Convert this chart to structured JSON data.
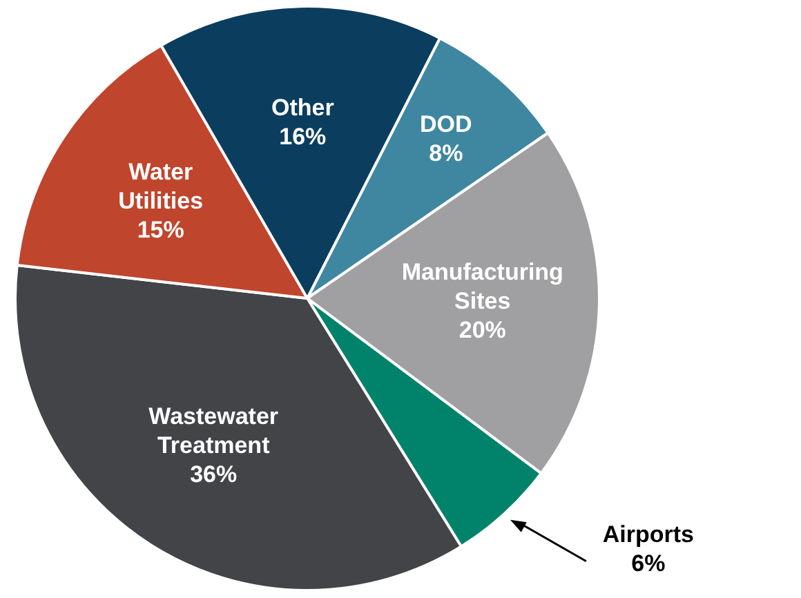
{
  "chart_data": {
    "type": "pie",
    "categories": [
      "DOD",
      "Manufacturing Sites",
      "Airports",
      "Wastewater Treatment",
      "Water Utilities",
      "Other"
    ],
    "values": [
      8,
      20,
      6,
      36,
      15,
      16
    ],
    "value_labels": [
      "8%",
      "20%",
      "6%",
      "36%",
      "15%",
      "16%"
    ],
    "colors": [
      "#3f87a0",
      "#a0a0a2",
      "#00836a",
      "#434448",
      "#c0452d",
      "#0b3d5e"
    ],
    "legend": false
  }
}
